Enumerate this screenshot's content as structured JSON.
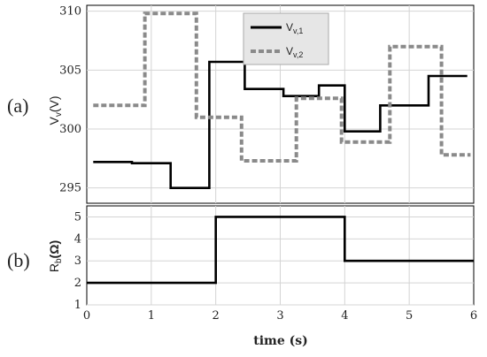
{
  "panel_labels": {
    "a": "(a)",
    "b": "(b)"
  },
  "chart_data": [
    {
      "type": "line",
      "panel": "(a)",
      "ylabel_main": "V",
      "ylabel_sub": "v",
      "ylabel_unit": "(V)",
      "xlim": [
        0,
        6
      ],
      "ylim": [
        293.7,
        310.5
      ],
      "yticks": [
        295,
        300,
        305,
        310
      ],
      "xticks": [
        0,
        1,
        2,
        3,
        4,
        5,
        6
      ],
      "grid": true,
      "legend_position": "top-center",
      "legend_entries": [
        {
          "main": "V",
          "sub": "v,1"
        },
        {
          "main": "V",
          "sub": "v,2"
        }
      ],
      "series": [
        {
          "color": "#000000",
          "style": "solid",
          "steps": [
            [
              0.1,
              297.2
            ],
            [
              0.7,
              297.2
            ],
            [
              0.7,
              297.1
            ],
            [
              1.3,
              297.1
            ],
            [
              1.3,
              295.0
            ],
            [
              1.9,
              295.0
            ],
            [
              1.9,
              305.7
            ],
            [
              2.45,
              305.7
            ],
            [
              2.45,
              303.4
            ],
            [
              3.05,
              303.4
            ],
            [
              3.05,
              302.8
            ],
            [
              3.6,
              302.8
            ],
            [
              3.6,
              303.7
            ],
            [
              4.0,
              303.7
            ],
            [
              4.0,
              299.8
            ],
            [
              4.55,
              299.8
            ],
            [
              4.55,
              302.0
            ],
            [
              5.3,
              302.0
            ],
            [
              5.3,
              304.5
            ],
            [
              5.9,
              304.5
            ]
          ]
        },
        {
          "color": "#8a8a8a",
          "style": "dashed",
          "steps": [
            [
              0.1,
              302.0
            ],
            [
              0.9,
              302.0
            ],
            [
              0.9,
              309.8
            ],
            [
              1.7,
              309.8
            ],
            [
              1.7,
              301.0
            ],
            [
              2.4,
              301.0
            ],
            [
              2.4,
              297.3
            ],
            [
              3.25,
              297.3
            ],
            [
              3.25,
              302.6
            ],
            [
              3.95,
              302.6
            ],
            [
              3.95,
              298.9
            ],
            [
              4.7,
              298.9
            ],
            [
              4.7,
              307.0
            ],
            [
              5.5,
              307.0
            ],
            [
              5.5,
              297.8
            ],
            [
              5.95,
              297.8
            ]
          ]
        }
      ]
    },
    {
      "type": "line",
      "panel": "(b)",
      "ylabel_main": "R",
      "ylabel_sub": "b",
      "ylabel_unit": "(Ω)",
      "xlabel": "time (s)",
      "xlim": [
        0,
        6
      ],
      "ylim": [
        1,
        5.5
      ],
      "yticks": [
        1,
        2,
        3,
        4,
        5
      ],
      "xticks": [
        0,
        1,
        2,
        3,
        4,
        5,
        6
      ],
      "grid": true,
      "series": [
        {
          "color": "#000000",
          "style": "solid",
          "steps": [
            [
              0,
              2
            ],
            [
              2,
              2
            ],
            [
              2,
              5
            ],
            [
              4,
              5
            ],
            [
              4,
              3
            ],
            [
              6,
              3
            ]
          ]
        }
      ]
    }
  ]
}
